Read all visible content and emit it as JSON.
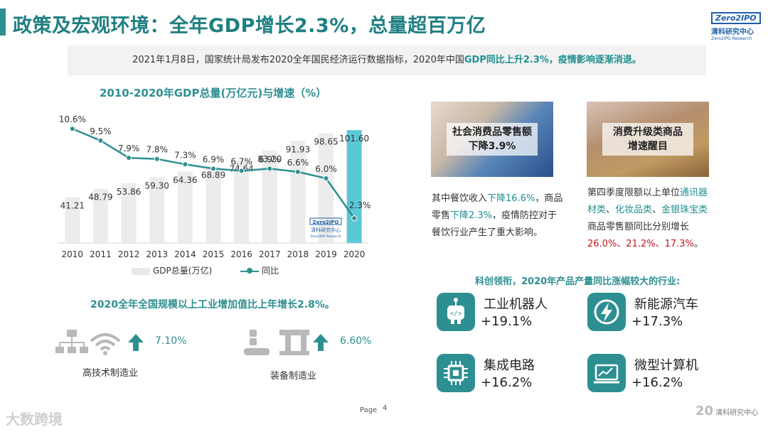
{
  "header": {
    "title": "政策及宏观环境：全年GDP增长2.3%，总量超百万亿",
    "logo_box": "Zero2IPO",
    "logo_cn": "清科研究中心",
    "logo_en": "Zero2IPO Research"
  },
  "summary": {
    "text_prefix": "2021年1月8日，国家统计局发布2020全年国民经济运行数据指标，2020年中国",
    "text_highlight": "GDP同比上升2.3%，疫情影响逐渐消退。"
  },
  "chart_data": {
    "type": "bar",
    "title": "2010-2020年GDP总量(万亿元)与增速（%）",
    "categories": [
      "2010",
      "2011",
      "2012",
      "2013",
      "2014",
      "2015",
      "2016",
      "2017",
      "2018",
      "2019",
      "2020"
    ],
    "series": [
      {
        "name": "GDP总量(万亿)",
        "type": "bar",
        "values": [
          41.21,
          48.79,
          53.86,
          59.3,
          64.36,
          68.89,
          74.64,
          83.2,
          91.93,
          98.65,
          101.6
        ],
        "color": "#ececec",
        "highlight_color": "#5bc8d6"
      },
      {
        "name": "同比",
        "type": "line",
        "values": [
          10.6,
          9.5,
          7.9,
          7.8,
          7.3,
          6.9,
          6.7,
          6.9,
          6.6,
          6.0,
          2.3
        ],
        "color": "#2e8f92"
      }
    ],
    "bar_labels": [
      "41.21",
      "48.79",
      "53.86",
      "59.30",
      "64.36",
      "68.89",
      "74.64",
      "83.20",
      "91.93",
      "98.65",
      "101.60"
    ],
    "line_labels": [
      "10.6%",
      "9.5%",
      "7.9%",
      "7.8%",
      "7.3%",
      "6.9%",
      "6.7%",
      "6.9%",
      "6.6%",
      "6.0%",
      "2.3%"
    ],
    "legend": [
      "GDP总量(万亿)",
      "同比"
    ],
    "legend_position": "bottom",
    "ylim_bar": [
      0,
      110
    ],
    "ylim_line": [
      0,
      12
    ],
    "grid": false,
    "watermark_box": "Zero2IPO",
    "watermark_cn": "清科研究中心",
    "watermark_en": "Zero2IPO Research"
  },
  "industry": {
    "title": "2020全年全国规模以上工业增加值比上年增长2.8%。",
    "items": [
      {
        "label": "高技术制造业",
        "value": "7.10%"
      },
      {
        "label": "装备制造业",
        "value": "6.60%"
      }
    ]
  },
  "consumption": {
    "cards": [
      {
        "label_l1": "社会消费品零售额",
        "label_l2": "下降3.9%"
      },
      {
        "label_l1": "消费升级类商品",
        "label_l2": "增速醒目"
      }
    ],
    "desc_left": {
      "p1": "其中餐饮收入",
      "h1": "下降16.6%",
      "p2": "，商品零售",
      "h2": "下降2.3%",
      "p3": "，疫情防控对于餐饮行业产生了重大影响。"
    },
    "desc_right": {
      "p1": "第四季度限额以上单位",
      "h1": "通讯器材类",
      "s1": "、",
      "h2": "化妆品类",
      "s2": "、",
      "h3": "金银珠宝类",
      "p2": "商品零售额同比分别增长",
      "r1": "26.0%、21.2%、17.3%",
      "p3": "。"
    }
  },
  "products": {
    "title": "科创领衔，2020年产品产量同比涨幅较大的行业:",
    "items": [
      {
        "name": "工业机器人",
        "pct": "+19.1%",
        "icon": "robot-icon"
      },
      {
        "name": "新能源汽车",
        "pct": "+17.3%",
        "icon": "lightning-icon"
      },
      {
        "name": "集成电路",
        "pct": "+16.2%",
        "icon": "chip-icon"
      },
      {
        "name": "微型计算机",
        "pct": "+16.2%",
        "icon": "monitor-chart-icon"
      }
    ]
  },
  "footer": {
    "page_label": "Page",
    "page_num": "4",
    "right_num": "20",
    "right_text": "清科研究中心",
    "watermark": "大数跨境"
  },
  "colors": {
    "accent": "#2e8f92",
    "highlight": "#1f8f92",
    "red": "#c0141c"
  }
}
